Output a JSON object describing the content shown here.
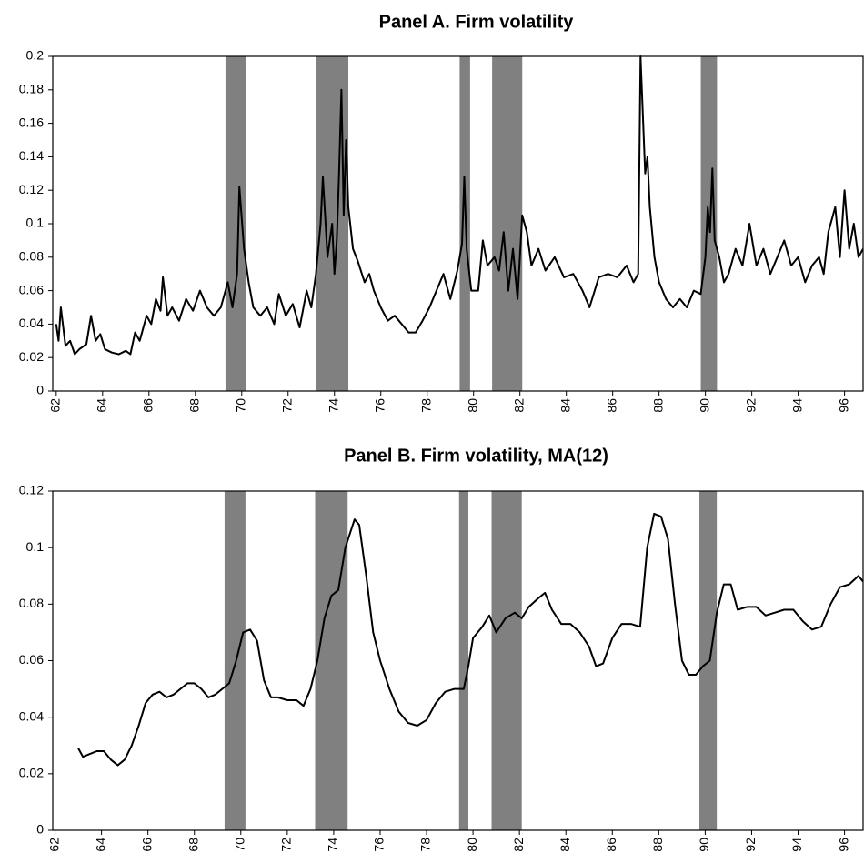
{
  "chart_data": [
    {
      "type": "line",
      "title": "Panel A. Firm volatility",
      "x": [
        62.0,
        62.1,
        62.2,
        62.4,
        62.6,
        62.8,
        63.0,
        63.3,
        63.5,
        63.7,
        63.9,
        64.1,
        64.4,
        64.7,
        65.0,
        65.2,
        65.4,
        65.6,
        65.9,
        66.1,
        66.3,
        66.5,
        66.6,
        66.8,
        67.0,
        67.3,
        67.6,
        67.9,
        68.2,
        68.5,
        68.8,
        69.1,
        69.4,
        69.6,
        69.8,
        69.9,
        70.1,
        70.3,
        70.5,
        70.8,
        71.1,
        71.4,
        71.6,
        71.9,
        72.2,
        72.5,
        72.8,
        73.0,
        73.2,
        73.4,
        73.5,
        73.7,
        73.9,
        74.0,
        74.1,
        74.2,
        74.3,
        74.4,
        74.5,
        74.6,
        74.8,
        75.0,
        75.3,
        75.5,
        75.7,
        76.0,
        76.3,
        76.6,
        76.9,
        77.2,
        77.5,
        77.8,
        78.1,
        78.4,
        78.7,
        79.0,
        79.3,
        79.5,
        79.6,
        79.7,
        79.9,
        80.2,
        80.4,
        80.6,
        80.9,
        81.1,
        81.3,
        81.5,
        81.7,
        81.9,
        82.1,
        82.3,
        82.5,
        82.8,
        83.1,
        83.5,
        83.9,
        84.3,
        84.7,
        85.0,
        85.4,
        85.8,
        86.2,
        86.6,
        86.9,
        87.1,
        87.2,
        87.4,
        87.5,
        87.6,
        87.8,
        88.0,
        88.3,
        88.6,
        88.9,
        89.2,
        89.5,
        89.8,
        90.0,
        90.1,
        90.2,
        90.3,
        90.4,
        90.6,
        90.8,
        91.0,
        91.3,
        91.6,
        91.9,
        92.2,
        92.5,
        92.8,
        93.1,
        93.4,
        93.7,
        94.0,
        94.3,
        94.6,
        94.9,
        95.1,
        95.3,
        95.6,
        95.8,
        96.0,
        96.2,
        96.4,
        96.6,
        96.8
      ],
      "series": [
        {
          "color": "#000000",
          "values": [
            0.04,
            0.03,
            0.05,
            0.027,
            0.03,
            0.022,
            0.025,
            0.028,
            0.045,
            0.03,
            0.034,
            0.025,
            0.023,
            0.022,
            0.024,
            0.022,
            0.035,
            0.03,
            0.045,
            0.04,
            0.055,
            0.048,
            0.068,
            0.045,
            0.05,
            0.042,
            0.055,
            0.048,
            0.06,
            0.05,
            0.045,
            0.05,
            0.065,
            0.05,
            0.07,
            0.122,
            0.085,
            0.065,
            0.05,
            0.045,
            0.05,
            0.04,
            0.058,
            0.045,
            0.052,
            0.038,
            0.06,
            0.05,
            0.07,
            0.1,
            0.128,
            0.08,
            0.1,
            0.07,
            0.09,
            0.13,
            0.18,
            0.105,
            0.15,
            0.11,
            0.085,
            0.078,
            0.065,
            0.07,
            0.06,
            0.05,
            0.042,
            0.045,
            0.04,
            0.035,
            0.035,
            0.042,
            0.05,
            0.06,
            0.07,
            0.055,
            0.072,
            0.088,
            0.128,
            0.085,
            0.06,
            0.06,
            0.09,
            0.075,
            0.08,
            0.072,
            0.095,
            0.06,
            0.085,
            0.055,
            0.105,
            0.095,
            0.075,
            0.085,
            0.072,
            0.08,
            0.068,
            0.07,
            0.06,
            0.05,
            0.068,
            0.07,
            0.068,
            0.075,
            0.065,
            0.07,
            0.2,
            0.13,
            0.14,
            0.11,
            0.08,
            0.065,
            0.055,
            0.05,
            0.055,
            0.05,
            0.06,
            0.058,
            0.08,
            0.11,
            0.095,
            0.133,
            0.09,
            0.08,
            0.065,
            0.07,
            0.085,
            0.075,
            0.1,
            0.075,
            0.085,
            0.07,
            0.08,
            0.09,
            0.075,
            0.08,
            0.065,
            0.075,
            0.08,
            0.07,
            0.095,
            0.11,
            0.08,
            0.12,
            0.085,
            0.1,
            0.08,
            0.085
          ]
        }
      ],
      "shaded_periods": [
        [
          69.3,
          70.2
        ],
        [
          73.2,
          74.6
        ],
        [
          79.4,
          79.85
        ],
        [
          80.8,
          82.1
        ],
        [
          89.8,
          90.5
        ]
      ],
      "shade_color": "#808080",
      "xlim": [
        61.85,
        96.8
      ],
      "ylim": [
        0,
        0.2
      ],
      "xticks": [
        62,
        64,
        66,
        68,
        70,
        72,
        74,
        76,
        78,
        80,
        82,
        84,
        86,
        88,
        90,
        92,
        94,
        96
      ],
      "yticks": [
        0,
        0.02,
        0.04,
        0.06,
        0.08,
        0.1,
        0.12,
        0.14,
        0.16,
        0.18,
        0.2
      ]
    },
    {
      "type": "line",
      "title": "Panel B.  Firm volatility, MA(12)",
      "x": [
        63.0,
        63.2,
        63.5,
        63.8,
        64.1,
        64.4,
        64.7,
        65.0,
        65.3,
        65.6,
        65.9,
        66.2,
        66.5,
        66.8,
        67.1,
        67.4,
        67.7,
        68.0,
        68.3,
        68.6,
        68.9,
        69.2,
        69.5,
        69.8,
        70.1,
        70.4,
        70.7,
        71.0,
        71.3,
        71.6,
        72.0,
        72.4,
        72.7,
        73.0,
        73.3,
        73.6,
        73.9,
        74.2,
        74.5,
        74.7,
        74.9,
        75.1,
        75.4,
        75.7,
        76.0,
        76.4,
        76.8,
        77.2,
        77.6,
        78.0,
        78.4,
        78.8,
        79.2,
        79.6,
        79.8,
        80.0,
        80.4,
        80.7,
        81.0,
        81.4,
        81.8,
        82.1,
        82.4,
        82.8,
        83.1,
        83.4,
        83.8,
        84.2,
        84.6,
        85.0,
        85.3,
        85.6,
        86.0,
        86.4,
        86.8,
        87.2,
        87.5,
        87.8,
        88.1,
        88.4,
        88.7,
        89.0,
        89.3,
        89.6,
        89.9,
        90.2,
        90.5,
        90.8,
        91.1,
        91.4,
        91.8,
        92.2,
        92.6,
        93.0,
        93.4,
        93.8,
        94.2,
        94.6,
        95.0,
        95.4,
        95.8,
        96.2,
        96.6,
        96.8
      ],
      "series": [
        {
          "color": "#000000",
          "values": [
            0.029,
            0.026,
            0.027,
            0.028,
            0.028,
            0.025,
            0.023,
            0.025,
            0.03,
            0.037,
            0.045,
            0.048,
            0.049,
            0.047,
            0.048,
            0.05,
            0.052,
            0.052,
            0.05,
            0.047,
            0.048,
            0.05,
            0.052,
            0.06,
            0.07,
            0.071,
            0.067,
            0.053,
            0.047,
            0.047,
            0.046,
            0.046,
            0.044,
            0.05,
            0.06,
            0.075,
            0.083,
            0.085,
            0.1,
            0.105,
            0.11,
            0.108,
            0.09,
            0.07,
            0.06,
            0.05,
            0.042,
            0.038,
            0.037,
            0.039,
            0.045,
            0.049,
            0.05,
            0.05,
            0.058,
            0.068,
            0.072,
            0.076,
            0.07,
            0.075,
            0.077,
            0.075,
            0.079,
            0.082,
            0.084,
            0.078,
            0.073,
            0.073,
            0.07,
            0.065,
            0.058,
            0.059,
            0.068,
            0.073,
            0.073,
            0.072,
            0.1,
            0.112,
            0.111,
            0.103,
            0.08,
            0.06,
            0.055,
            0.055,
            0.058,
            0.06,
            0.077,
            0.087,
            0.087,
            0.078,
            0.079,
            0.079,
            0.076,
            0.077,
            0.078,
            0.078,
            0.074,
            0.071,
            0.072,
            0.08,
            0.086,
            0.087,
            0.09,
            0.088
          ]
        }
      ],
      "shaded_periods": [
        [
          69.3,
          70.2
        ],
        [
          73.2,
          74.6
        ],
        [
          79.4,
          79.8
        ],
        [
          80.8,
          82.1
        ],
        [
          89.75,
          90.5
        ]
      ],
      "shade_color": "#808080",
      "xlim": [
        61.9,
        96.8
      ],
      "ylim": [
        0,
        0.12
      ],
      "xticks": [
        62,
        64,
        66,
        68,
        70,
        72,
        74,
        76,
        78,
        80,
        82,
        84,
        86,
        88,
        90,
        92,
        94,
        96
      ],
      "yticks": [
        0,
        0.02,
        0.04,
        0.06,
        0.08,
        0.1,
        0.12
      ]
    }
  ]
}
